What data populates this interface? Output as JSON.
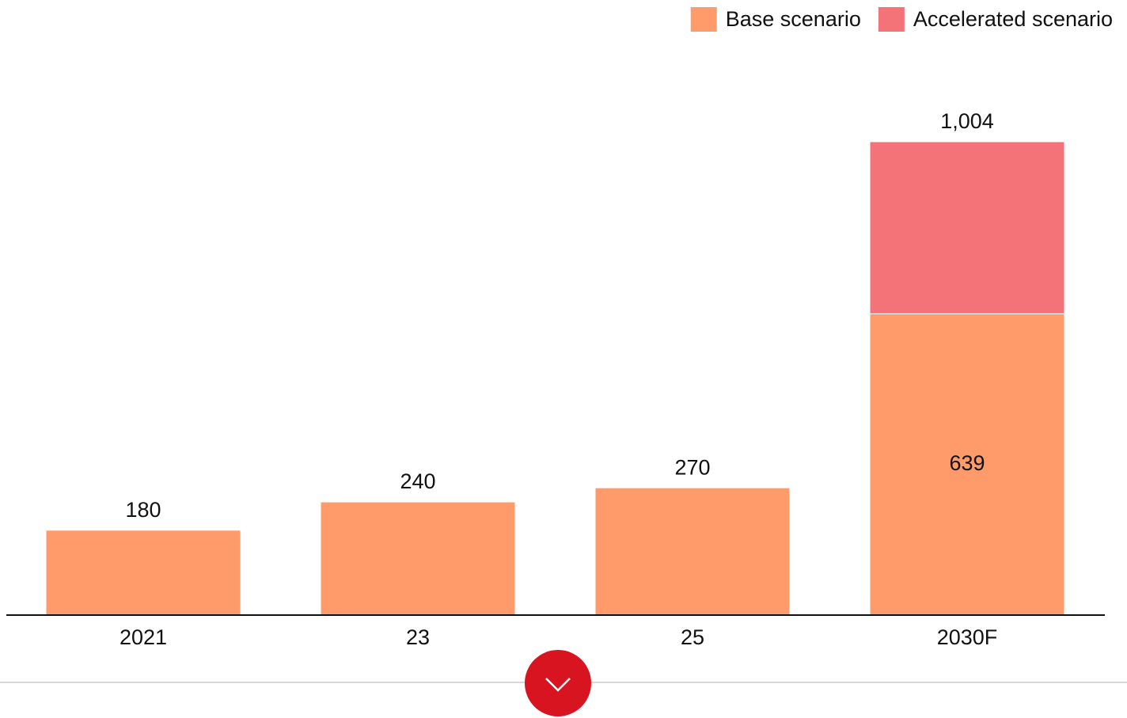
{
  "chart_data": {
    "type": "bar",
    "stacked": true,
    "categories": [
      "2021",
      "23",
      "25",
      "2030F"
    ],
    "series": [
      {
        "name": "Base scenario",
        "color": "#ff9a6a",
        "values": [
          180,
          240,
          270,
          639
        ]
      },
      {
        "name": "Accelerated scenario",
        "color": "#f47378",
        "values": [
          null,
          null,
          null,
          365
        ]
      }
    ],
    "totals": [
      null,
      null,
      null,
      1004
    ],
    "total_labels": [
      null,
      null,
      null,
      "1,004"
    ],
    "ylim": [
      0,
      1004
    ],
    "legend": "top-right"
  }
}
